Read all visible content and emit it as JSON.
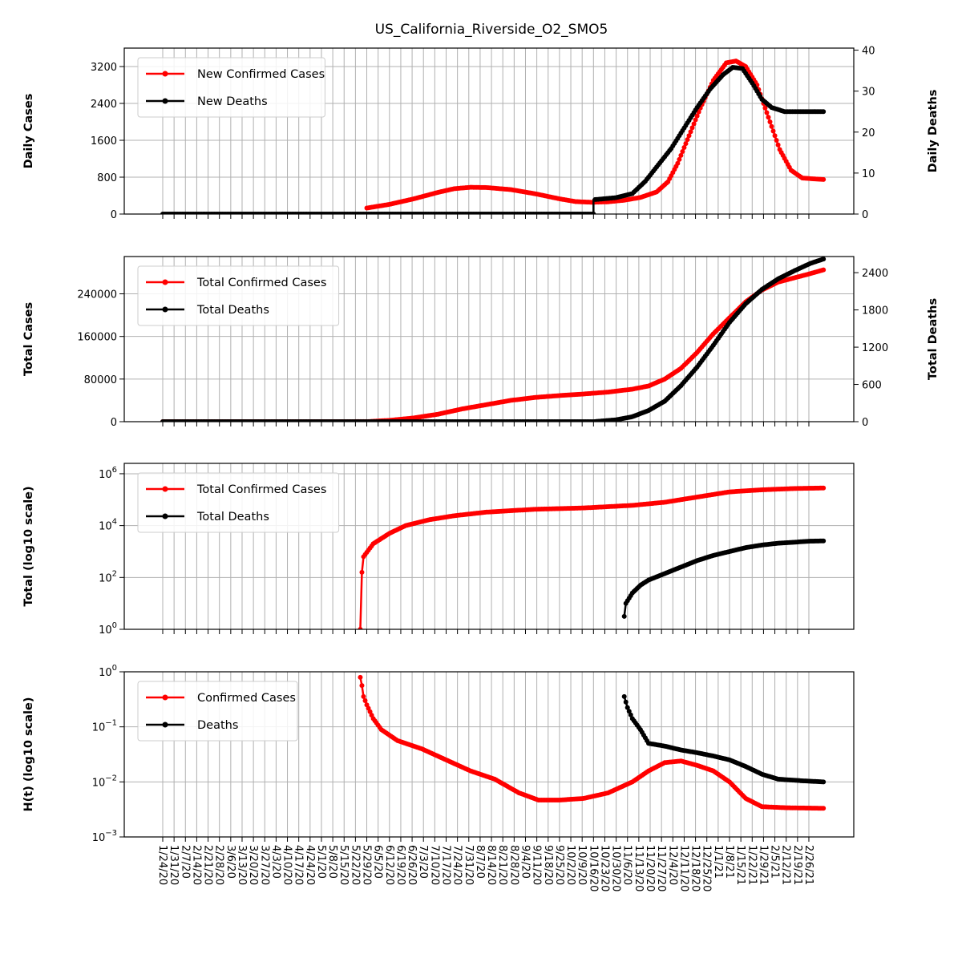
{
  "chart_data": {
    "title": "US_California_Riverside_O2_SMO5",
    "type": "line",
    "x_dates": [
      "1/24/20",
      "1/31/20",
      "2/7/20",
      "2/14/20",
      "2/21/20",
      "2/28/20",
      "3/6/20",
      "3/13/20",
      "3/20/20",
      "3/27/20",
      "4/3/20",
      "4/10/20",
      "4/17/20",
      "4/24/20",
      "5/1/20",
      "5/8/20",
      "5/15/20",
      "5/22/20",
      "5/29/20",
      "6/5/20",
      "6/12/20",
      "6/19/20",
      "6/26/20",
      "7/3/20",
      "7/10/20",
      "7/17/20",
      "7/24/20",
      "7/31/20",
      "8/7/20",
      "8/14/20",
      "8/21/20",
      "8/28/20",
      "9/4/20",
      "9/11/20",
      "9/18/20",
      "9/25/20",
      "10/2/20",
      "10/9/20",
      "10/16/20",
      "10/23/20",
      "10/30/20",
      "11/6/20",
      "11/13/20",
      "11/20/20",
      "11/27/20",
      "12/4/20",
      "12/11/20",
      "12/18/20",
      "12/25/20",
      "1/1/21",
      "1/8/21",
      "1/15/21",
      "1/22/21",
      "1/29/21",
      "2/5/21",
      "2/12/21",
      "2/19/21",
      "2/26/21"
    ],
    "panels": [
      {
        "id": "daily",
        "ylabel": "Daily Cases",
        "ylabel_right": "Daily Deaths",
        "yticks": [
          "0",
          "800",
          "1600",
          "2400",
          "3200"
        ],
        "yticks_right": [
          "0",
          "10",
          "20",
          "30",
          "40"
        ],
        "ylim": [
          0,
          3600
        ],
        "ylim_right": [
          0,
          40.5
        ],
        "series": [
          {
            "name": "New Confirmed Cases",
            "color": "#ff0000",
            "axis": "left",
            "points": [
              [
                126,
                130
              ],
              [
                140,
                210
              ],
              [
                155,
                330
              ],
              [
                170,
                470
              ],
              [
                180,
                550
              ],
              [
                190,
                580
              ],
              [
                200,
                575
              ],
              [
                215,
                530
              ],
              [
                230,
                440
              ],
              [
                245,
                330
              ],
              [
                255,
                270
              ],
              [
                265,
                255
              ],
              [
                275,
                265
              ],
              [
                285,
                300
              ],
              [
                295,
                360
              ],
              [
                305,
                480
              ],
              [
                312,
                700
              ],
              [
                318,
                1100
              ],
              [
                325,
                1700
              ],
              [
                332,
                2300
              ],
              [
                340,
                2900
              ],
              [
                348,
                3280
              ],
              [
                354,
                3320
              ],
              [
                360,
                3200
              ],
              [
                367,
                2800
              ],
              [
                374,
                2100
              ],
              [
                381,
                1400
              ],
              [
                388,
                950
              ],
              [
                395,
                780
              ],
              [
                408,
                750
              ]
            ]
          },
          {
            "name": "New Deaths",
            "color": "#000000",
            "axis": "right",
            "points": [
              [
                0,
                0
              ],
              [
                250,
                0
              ],
              [
                266,
                0
              ],
              [
                266,
                3.5
              ],
              [
                280,
                4
              ],
              [
                290,
                5
              ],
              [
                298,
                8
              ],
              [
                306,
                12
              ],
              [
                314,
                16
              ],
              [
                322,
                21
              ],
              [
                330,
                26
              ],
              [
                338,
                30.5
              ],
              [
                346,
                34
              ],
              [
                352,
                35.8
              ],
              [
                358,
                35.5
              ],
              [
                364,
                32
              ],
              [
                370,
                28
              ],
              [
                376,
                26
              ],
              [
                384,
                25
              ],
              [
                408,
                25
              ]
            ]
          }
        ]
      },
      {
        "id": "total",
        "ylabel": "Total Cases",
        "ylabel_right": "Total Deaths",
        "yticks": [
          "0",
          "80000",
          "160000",
          "240000"
        ],
        "yticks_right": [
          "0",
          "600",
          "1200",
          "1800",
          "2400"
        ],
        "ylim": [
          0,
          310000
        ],
        "ylim_right": [
          0,
          2660
        ],
        "series": [
          {
            "name": "Total Confirmed Cases",
            "color": "#ff0000",
            "axis": "left",
            "points": [
              [
                0,
                0
              ],
              [
                126,
                100
              ],
              [
                140,
                2500
              ],
              [
                155,
                7000
              ],
              [
                170,
                14000
              ],
              [
                185,
                24000
              ],
              [
                200,
                32000
              ],
              [
                215,
                40000
              ],
              [
                230,
                45500
              ],
              [
                245,
                49000
              ],
              [
                260,
                52000
              ],
              [
                275,
                55500
              ],
              [
                290,
                61000
              ],
              [
                300,
                67000
              ],
              [
                310,
                80000
              ],
              [
                320,
                100000
              ],
              [
                330,
                130000
              ],
              [
                340,
                165000
              ],
              [
                350,
                195000
              ],
              [
                360,
                225000
              ],
              [
                370,
                247000
              ],
              [
                380,
                262000
              ],
              [
                390,
                270000
              ],
              [
                400,
                278000
              ],
              [
                408,
                285000
              ]
            ]
          },
          {
            "name": "Total Deaths",
            "color": "#000000",
            "axis": "right",
            "points": [
              [
                0,
                0
              ],
              [
                266,
                0
              ],
              [
                280,
                30
              ],
              [
                290,
                80
              ],
              [
                300,
                180
              ],
              [
                310,
                330
              ],
              [
                320,
                580
              ],
              [
                330,
                880
              ],
              [
                340,
                1230
              ],
              [
                350,
                1600
              ],
              [
                360,
                1900
              ],
              [
                370,
                2130
              ],
              [
                380,
                2300
              ],
              [
                390,
                2430
              ],
              [
                400,
                2550
              ],
              [
                408,
                2620
              ]
            ]
          }
        ]
      },
      {
        "id": "log",
        "ylabel": "Total (log10 scale)",
        "yticks": [
          "10^0",
          "10^2",
          "10^4",
          "10^6"
        ],
        "ylim_log10": [
          0,
          6.4
        ],
        "series": [
          {
            "name": "Total Confirmed Cases",
            "color": "#ff0000",
            "points": [
              [
                122,
                0
              ],
              [
                123,
                2.2
              ],
              [
                124,
                2.8
              ],
              [
                130,
                3.3
              ],
              [
                140,
                3.7
              ],
              [
                150,
                4.0
              ],
              [
                165,
                4.23
              ],
              [
                180,
                4.38
              ],
              [
                200,
                4.52
              ],
              [
                230,
                4.63
              ],
              [
                260,
                4.68
              ],
              [
                290,
                4.78
              ],
              [
                310,
                4.9
              ],
              [
                330,
                5.1
              ],
              [
                350,
                5.3
              ],
              [
                370,
                5.38
              ],
              [
                390,
                5.43
              ],
              [
                408,
                5.45
              ]
            ]
          },
          {
            "name": "Total Deaths",
            "color": "#000000",
            "points": [
              [
                285,
                0.5
              ],
              [
                286,
                1.0
              ],
              [
                290,
                1.4
              ],
              [
                295,
                1.7
              ],
              [
                300,
                1.9
              ],
              [
                310,
                2.15
              ],
              [
                320,
                2.4
              ],
              [
                330,
                2.65
              ],
              [
                340,
                2.85
              ],
              [
                350,
                3.0
              ],
              [
                360,
                3.15
              ],
              [
                370,
                3.25
              ],
              [
                380,
                3.32
              ],
              [
                390,
                3.36
              ],
              [
                400,
                3.4
              ],
              [
                408,
                3.41
              ]
            ]
          }
        ]
      },
      {
        "id": "ht",
        "ylabel": "H(t) (log10 scale)",
        "yticks": [
          "10^-3",
          "10^-2",
          "10^-1",
          "10^0"
        ],
        "ylim_log10": [
          -3,
          0
        ],
        "series": [
          {
            "name": "Confirmed Cases",
            "color": "#ff0000",
            "points": [
              [
                122,
                -0.1
              ],
              [
                123,
                -0.25
              ],
              [
                124,
                -0.45
              ],
              [
                126,
                -0.6
              ],
              [
                130,
                -0.85
              ],
              [
                135,
                -1.05
              ],
              [
                145,
                -1.25
              ],
              [
                160,
                -1.4
              ],
              [
                175,
                -1.6
              ],
              [
                190,
                -1.8
              ],
              [
                205,
                -1.95
              ],
              [
                220,
                -2.2
              ],
              [
                232,
                -2.33
              ],
              [
                245,
                -2.33
              ],
              [
                260,
                -2.3
              ],
              [
                275,
                -2.2
              ],
              [
                290,
                -2.0
              ],
              [
                300,
                -1.8
              ],
              [
                310,
                -1.65
              ],
              [
                320,
                -1.62
              ],
              [
                330,
                -1.7
              ],
              [
                340,
                -1.8
              ],
              [
                350,
                -2.0
              ],
              [
                360,
                -2.3
              ],
              [
                370,
                -2.45
              ],
              [
                385,
                -2.47
              ],
              [
                408,
                -2.48
              ]
            ]
          },
          {
            "name": "Deaths",
            "color": "#000000",
            "points": [
              [
                285,
                -0.45
              ],
              [
                287,
                -0.65
              ],
              [
                290,
                -0.85
              ],
              [
                295,
                -1.05
              ],
              [
                300,
                -1.3
              ],
              [
                310,
                -1.35
              ],
              [
                320,
                -1.42
              ],
              [
                330,
                -1.47
              ],
              [
                340,
                -1.53
              ],
              [
                350,
                -1.6
              ],
              [
                360,
                -1.72
              ],
              [
                370,
                -1.86
              ],
              [
                380,
                -1.95
              ],
              [
                395,
                -1.98
              ],
              [
                408,
                -2.0
              ]
            ]
          }
        ]
      }
    ]
  }
}
